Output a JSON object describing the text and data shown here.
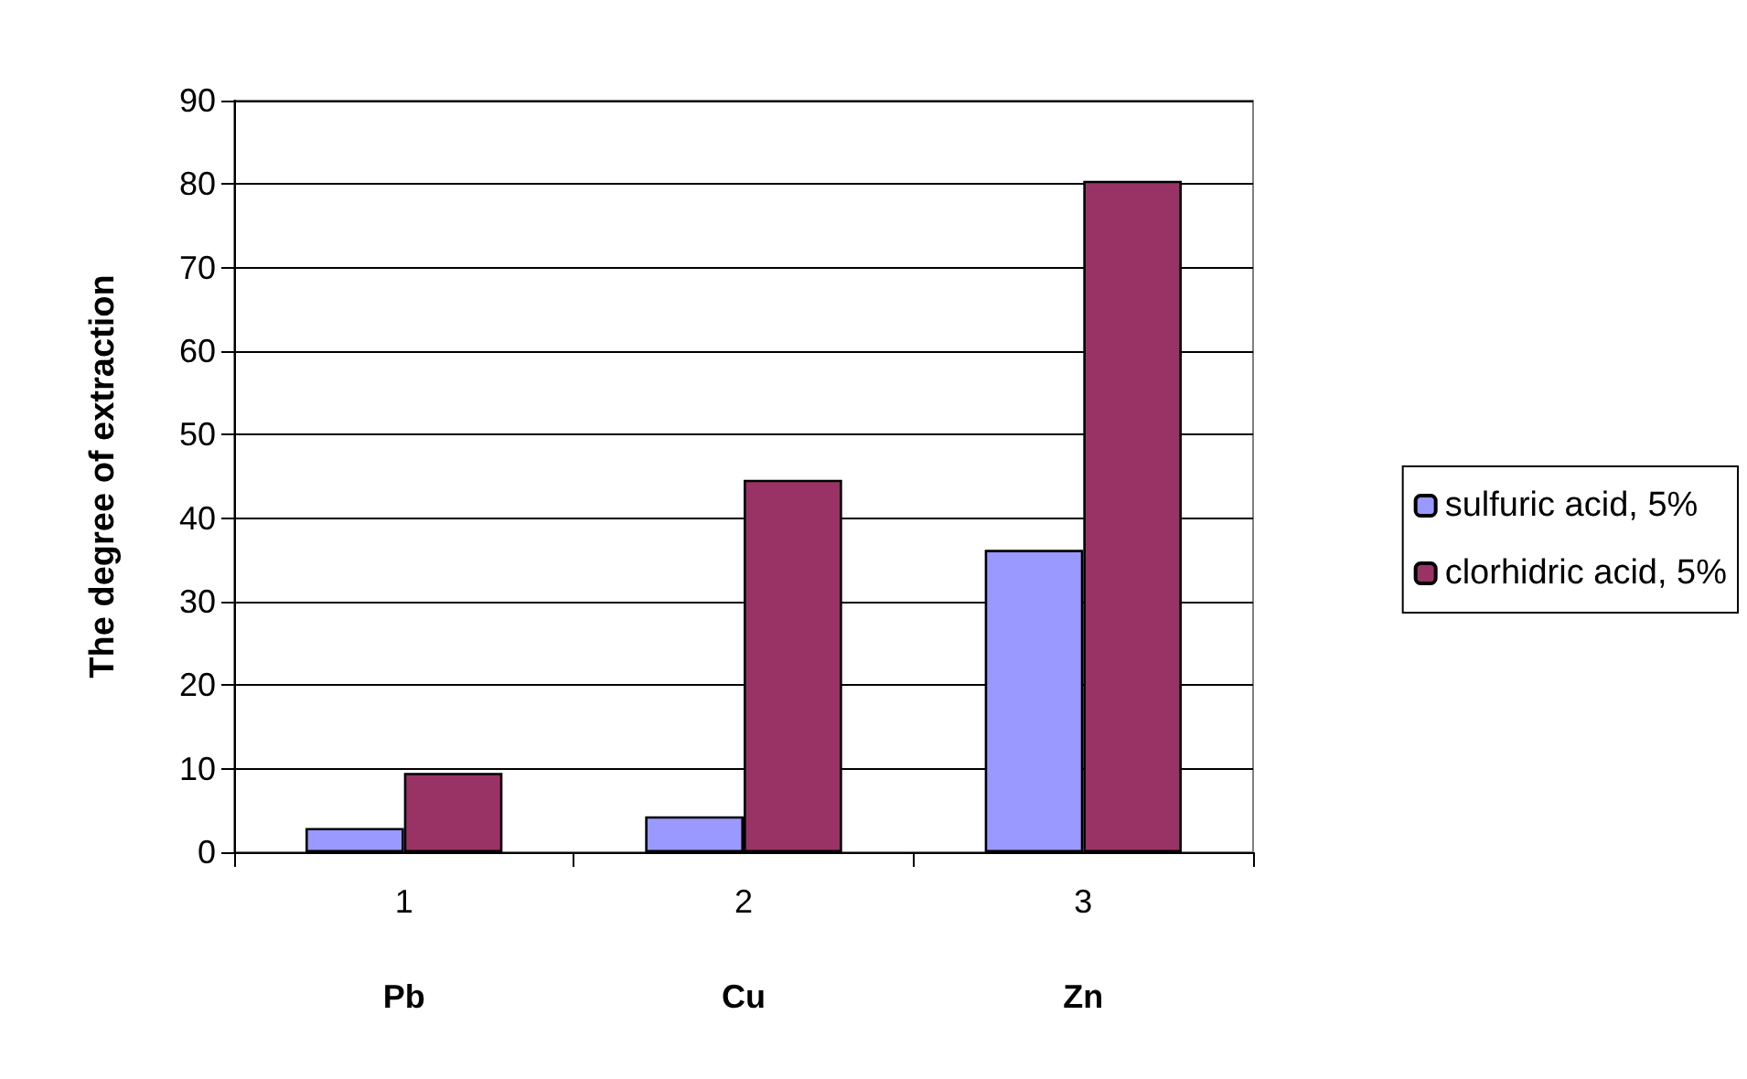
{
  "chart_data": {
    "type": "bar",
    "ylabel": "The degree of extraction",
    "categories": [
      "1\nPb",
      "2\nCu",
      "3\nZn"
    ],
    "series": [
      {
        "name": "sulfuric acid, 5%",
        "color": "#9999ff",
        "values": [
          2.9,
          4.3,
          36.2
        ]
      },
      {
        "name": "clorhidric acid, 5%",
        "color": "#993366",
        "values": [
          9.5,
          44.6,
          80.4
        ]
      }
    ],
    "ylim": [
      0,
      90
    ],
    "yticks": [
      0,
      10,
      20,
      30,
      40,
      50,
      60,
      70,
      80,
      90
    ],
    "grid": "y",
    "legend": "right"
  }
}
